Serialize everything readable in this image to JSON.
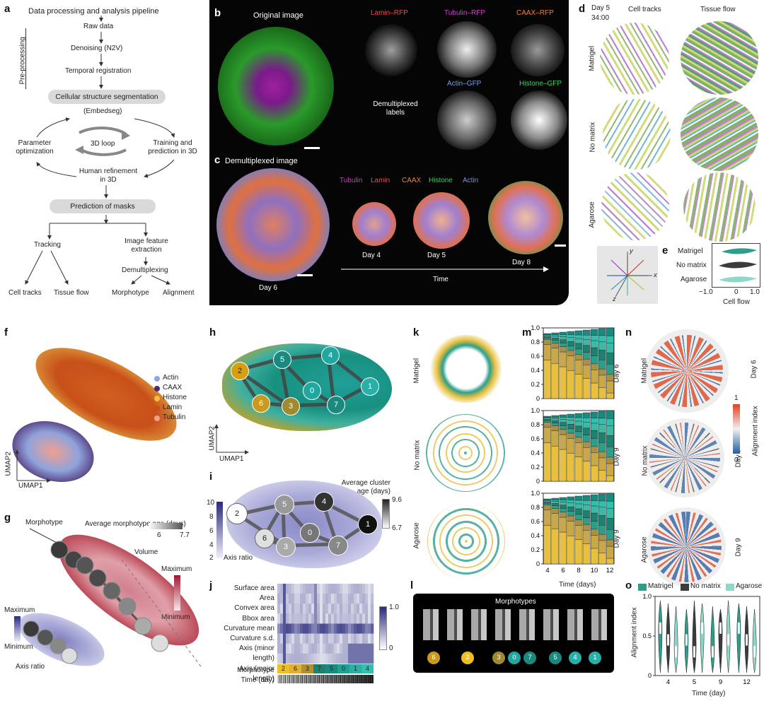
{
  "panel_letters": [
    "a",
    "b",
    "c",
    "d",
    "e",
    "f",
    "g",
    "h",
    "i",
    "j",
    "k",
    "l",
    "m",
    "n",
    "o"
  ],
  "a": {
    "title": "Data processing and analysis pipeline",
    "preprocessing_label": "Pre-processing",
    "steps": [
      "Raw data",
      "Denoising (N2V)",
      "Temporal registration"
    ],
    "segmentation": "Cellular structure segmentation",
    "embedseg": "(Embedseg)",
    "loop": "3D loop",
    "param_opt": "Parameter optimization",
    "training": "Training and prediction in 3D",
    "human": "Human refinement in 3D",
    "masks": "Prediction of masks",
    "tracking": "Tracking",
    "image_feature": "Image feature extraction",
    "demux": "Demultiplexing",
    "outputs": [
      "Cell tracks",
      "Tissue flow",
      "Morphotype",
      "Alignment"
    ]
  },
  "b": {
    "original": "Original image",
    "channels": [
      "Lamin–RFP",
      "Tubulin–RFP",
      "CAAX–RFP",
      "Actin–GFP",
      "Histone–GFP"
    ],
    "channel_colors": [
      "#e05050",
      "#d040d0",
      "#f08030",
      "#7aa0e0",
      "#40d060"
    ],
    "demux_labels": "Demultiplexed labels"
  },
  "c": {
    "title": "Demultiplexed image",
    "legend": [
      "Tubulin",
      "Lamin",
      "CAAX",
      "Histone",
      "Actin"
    ],
    "legend_colors": [
      "#c040c0",
      "#e05050",
      "#f08030",
      "#40d060",
      "#7a90e0"
    ],
    "days": [
      "Day 4",
      "Day 5",
      "Day 8"
    ],
    "day6": "Day 6",
    "time": "Time"
  },
  "d": {
    "time": "Day 5",
    "clock": "34:00",
    "cols": [
      "Cell tracks",
      "Tissue flow"
    ],
    "rows": [
      "Matrigel",
      "No matrix",
      "Agarose"
    ],
    "axes": [
      "x",
      "y",
      "z"
    ]
  },
  "e": {
    "rows": [
      "Matrigel",
      "No matrix",
      "Agarose"
    ],
    "ticks": [
      "−1.0",
      "0",
      "1.0"
    ],
    "xlabel": "Cell flow"
  },
  "f": {
    "legend": [
      "Actin",
      "CAAX",
      "Histone",
      "Lamin",
      "Tubulin"
    ],
    "legend_colors": [
      "#8fa3dc",
      "#4b2a6e",
      "#f0c040",
      "#c8501a",
      "#f0a090"
    ],
    "xaxis": "UMAP1",
    "yaxis": "UMAP2"
  },
  "g": {
    "morphotype": "Morphotype",
    "avg_age": "Average morphotype age (days)",
    "age_ticks": [
      "6",
      "7.7"
    ],
    "volume": "Volume",
    "maximum": "Maximum",
    "minimum": "Minimum",
    "axis_ratio": "Axis ratio"
  },
  "h": {
    "nodes": [
      "2",
      "5",
      "4",
      "6",
      "0",
      "1",
      "3",
      "7"
    ],
    "xaxis": "UMAP1",
    "yaxis": "UMAP2"
  },
  "i": {
    "title": "Average cluster age (days)",
    "ticks": [
      "9.6",
      "6.7"
    ],
    "axis_ratio": "Axis ratio",
    "axis_ticks": [
      "10",
      "8",
      "6",
      "4",
      "2"
    ],
    "nodes": [
      "2",
      "5",
      "4",
      "6",
      "0",
      "3",
      "7",
      "1"
    ]
  },
  "j": {
    "features": [
      "Surface area",
      "Area",
      "Convex area",
      "Bbox area",
      "Curvature mean",
      "Curvature s.d.",
      "Axis (minor length)",
      "Axis (major length)"
    ],
    "morphotype": "Morphotype",
    "time": "Time (day)",
    "morph_order": [
      "2",
      "6",
      "3",
      "7",
      "5",
      "0",
      "1",
      "4"
    ],
    "cbar": [
      "1.0",
      "0"
    ]
  },
  "k": {
    "rows": [
      "Matrigel",
      "No matrix",
      "Agarose"
    ]
  },
  "l": {
    "title": "Morphotypes",
    "labels": [
      "6",
      "2",
      "3",
      "0",
      "7",
      "5",
      "4",
      "1"
    ]
  },
  "chart_data": [
    {
      "type": "bar",
      "panel": "m",
      "stacked": true,
      "rows": [
        "Day 6",
        "Day 9",
        "Day 9"
      ],
      "yticks": [
        "0",
        "0.2",
        "0.4",
        "0.6",
        "0.8",
        "1.0"
      ],
      "xticks": [
        "4",
        "6",
        "8",
        "10",
        "12"
      ],
      "xlabel": "Time (days)"
    },
    {
      "type": "violin",
      "panel": "o",
      "legend": [
        "Matrigel",
        "No matrix",
        "Agarose"
      ],
      "legend_colors": [
        "#2e9e8a",
        "#3c3c3c",
        "#8fd8c8"
      ],
      "ylabel": "Alignment index",
      "yticks": [
        "0",
        "0.5",
        "1.0"
      ],
      "xticks": [
        "4",
        "5",
        "9",
        "12"
      ],
      "xlabel": "Time (day)"
    }
  ],
  "n": {
    "rows": [
      "Matrigel",
      "No matrix",
      "Agarose"
    ],
    "days": [
      "Day 6",
      "Day 9",
      "Day 9"
    ],
    "cbar_label": "Alignment index",
    "cbar_ticks": [
      "1",
      "0"
    ]
  }
}
